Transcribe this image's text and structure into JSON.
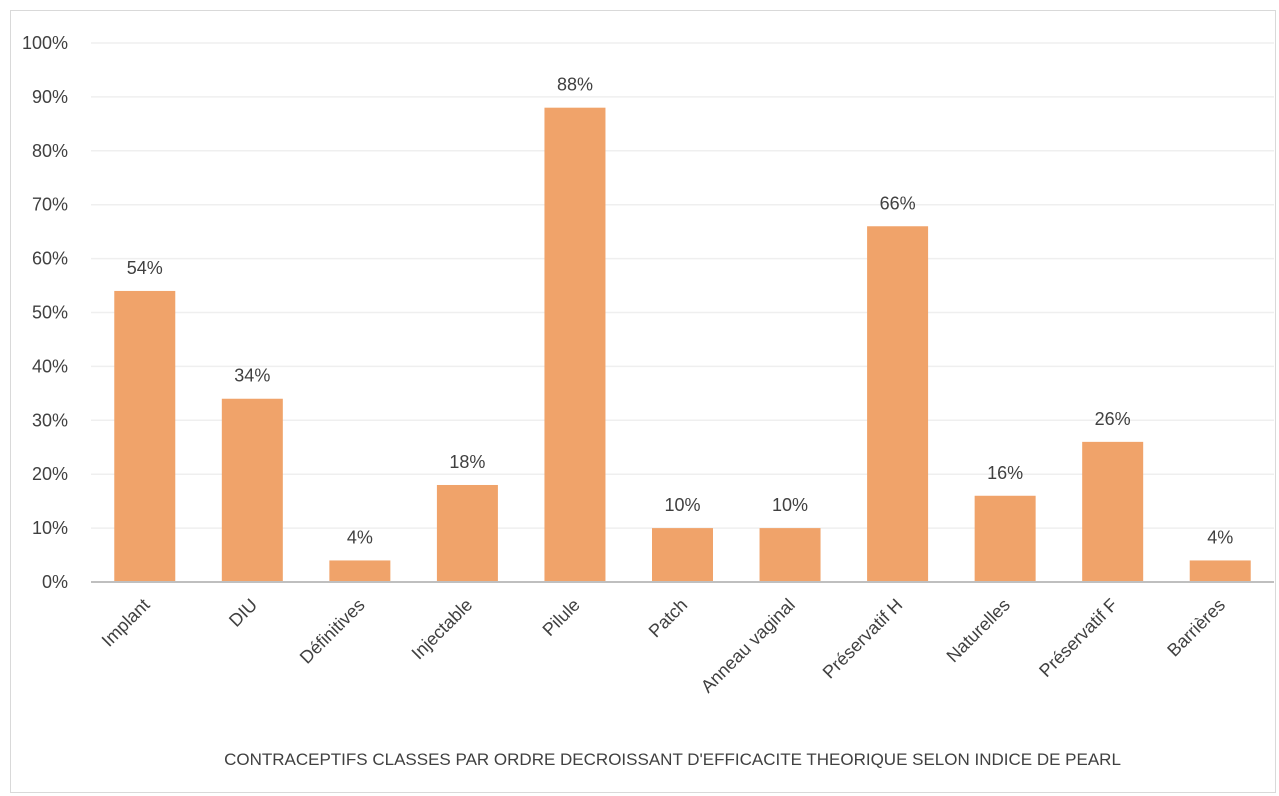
{
  "chart_data": {
    "type": "bar",
    "title": "",
    "xlabel": "CONTRACEPTIFS CLASSES PAR ORDRE DECROISSANT D'EFFICACITE THEORIQUE SELON INDICE DE PEARL",
    "ylabel": "",
    "categories": [
      "Implant",
      "DIU",
      "Définitives",
      "Injectable",
      "Pilule",
      "Patch",
      "Anneau vaginal",
      "Préservatif H",
      "Naturelles",
      "Préservatif F",
      "Barrières"
    ],
    "values": [
      54,
      34,
      4,
      18,
      88,
      10,
      10,
      66,
      16,
      26,
      4
    ],
    "data_labels": [
      "54%",
      "34%",
      "4%",
      "18%",
      "88%",
      "10%",
      "10%",
      "66%",
      "16%",
      "26%",
      "4%"
    ],
    "ylim": [
      0,
      100
    ],
    "y_ticks": [
      0,
      10,
      20,
      30,
      40,
      50,
      60,
      70,
      80,
      90,
      100
    ],
    "y_tick_labels": [
      "0%",
      "10%",
      "20%",
      "30%",
      "40%",
      "50%",
      "60%",
      "70%",
      "80%",
      "90%",
      "100%"
    ],
    "grid": true,
    "legend": "none",
    "colors": {
      "bar": "#F0A36A",
      "gridline": "#efefef",
      "axis": "#bfbfbf",
      "text": "#404040"
    }
  }
}
